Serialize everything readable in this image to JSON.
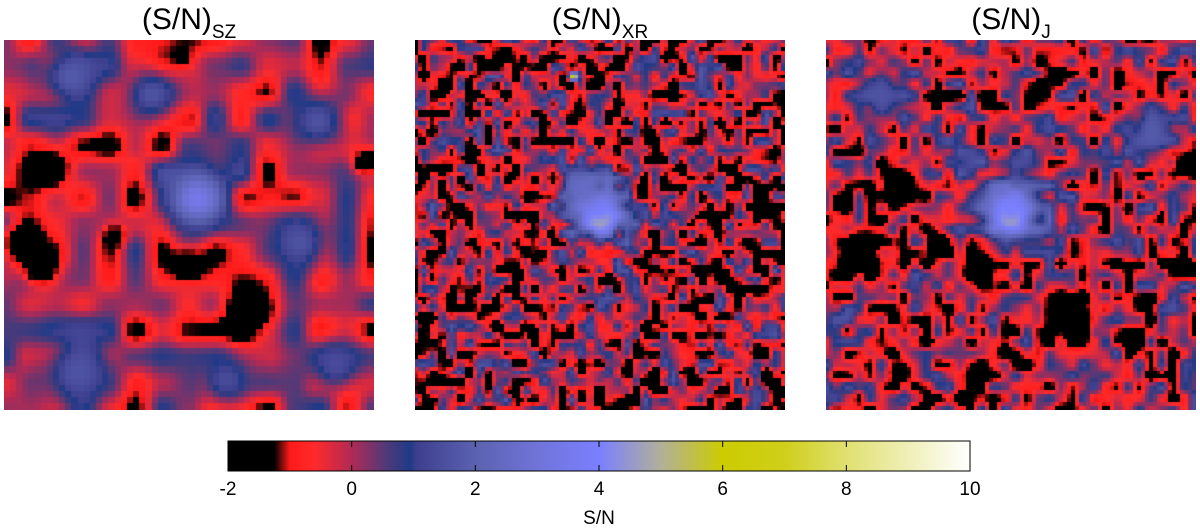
{
  "chart_data": {
    "type": "heatmap",
    "panels": [
      {
        "title_main": "(S/N)",
        "title_sub": "SZ",
        "grid_cells": 60,
        "background_level": -0.3,
        "blobs": [
          {
            "x": 0.13,
            "y": 0.35,
            "r": 0.035,
            "v": -2.6
          },
          {
            "x": 0.05,
            "y": 0.55,
            "r": 0.04,
            "v": -2.6
          },
          {
            "x": 0.1,
            "y": 0.62,
            "r": 0.035,
            "v": -2.4
          },
          {
            "x": 0.3,
            "y": 0.53,
            "r": 0.02,
            "v": -2.2
          },
          {
            "x": 0.5,
            "y": 0.61,
            "r": 0.04,
            "v": -2.4
          },
          {
            "x": 0.66,
            "y": 0.73,
            "r": 0.045,
            "v": -2.6
          },
          {
            "x": 0.98,
            "y": 0.33,
            "r": 0.025,
            "v": -2.4
          },
          {
            "x": 0.48,
            "y": 0.05,
            "r": 0.02,
            "v": -1.8
          },
          {
            "x": 0.52,
            "y": 0.43,
            "r": 0.06,
            "v": 3.5
          },
          {
            "x": 0.18,
            "y": 0.1,
            "r": 0.06,
            "v": 1.8
          },
          {
            "x": 0.4,
            "y": 0.15,
            "r": 0.05,
            "v": 1.6
          },
          {
            "x": 0.85,
            "y": 0.22,
            "r": 0.06,
            "v": 1.6
          },
          {
            "x": 0.8,
            "y": 0.55,
            "r": 0.06,
            "v": 1.6
          },
          {
            "x": 0.2,
            "y": 0.9,
            "r": 0.07,
            "v": 1.6
          },
          {
            "x": 0.6,
            "y": 0.92,
            "r": 0.05,
            "v": 1.4
          },
          {
            "x": 0.9,
            "y": 0.88,
            "r": 0.05,
            "v": 1.4
          }
        ],
        "noise_amplitude": 1.4,
        "noise_scale": 0.07
      },
      {
        "title_main": "(S/N)",
        "title_sub": "XR",
        "grid_cells": 95,
        "background_level": -0.5,
        "blobs": [
          {
            "x": 0.5,
            "y": 0.48,
            "r": 0.025,
            "v": 9.8
          },
          {
            "x": 0.5,
            "y": 0.46,
            "r": 0.06,
            "v": 4.0
          },
          {
            "x": 0.45,
            "y": 0.4,
            "r": 0.04,
            "v": 2.5
          },
          {
            "x": 0.43,
            "y": 0.1,
            "r": 0.01,
            "v": 6.5
          }
        ],
        "noise_amplitude": 2.2,
        "noise_scale": 0.025
      },
      {
        "title_main": "(S/N)",
        "title_sub": "J",
        "grid_cells": 95,
        "background_level": -0.3,
        "blobs": [
          {
            "x": 0.5,
            "y": 0.48,
            "r": 0.025,
            "v": 9.5
          },
          {
            "x": 0.5,
            "y": 0.46,
            "r": 0.065,
            "v": 4.0
          },
          {
            "x": 0.2,
            "y": 0.4,
            "r": 0.04,
            "v": -2.6
          },
          {
            "x": 0.09,
            "y": 0.58,
            "r": 0.05,
            "v": -2.6
          },
          {
            "x": 0.3,
            "y": 0.55,
            "r": 0.025,
            "v": -2.4
          },
          {
            "x": 0.42,
            "y": 0.62,
            "r": 0.04,
            "v": -2.4
          },
          {
            "x": 0.66,
            "y": 0.75,
            "r": 0.05,
            "v": -2.6
          },
          {
            "x": 0.2,
            "y": 0.9,
            "r": 0.025,
            "v": -2.2
          },
          {
            "x": 0.98,
            "y": 0.33,
            "r": 0.025,
            "v": -2.2
          },
          {
            "x": 0.88,
            "y": 0.25,
            "r": 0.05,
            "v": 1.8
          },
          {
            "x": 0.15,
            "y": 0.15,
            "r": 0.05,
            "v": 1.6
          }
        ],
        "noise_amplitude": 1.9,
        "noise_scale": 0.03
      }
    ],
    "colorbar": {
      "vmin": -2,
      "vmax": 10,
      "ticks": [
        -2,
        0,
        2,
        4,
        6,
        8,
        10
      ],
      "tick_labels": [
        "-2",
        "0",
        "2",
        "4",
        "6",
        "8",
        "10"
      ],
      "label": "S/N",
      "colormap": [
        {
          "v": -2.0,
          "c": "#000000"
        },
        {
          "v": -1.25,
          "c": "#000000"
        },
        {
          "v": -1.0,
          "c": "#ff1a1a"
        },
        {
          "v": -0.6,
          "c": "#ff2a2a"
        },
        {
          "v": 0.0,
          "c": "#b02a55"
        },
        {
          "v": 0.6,
          "c": "#4a3a7a"
        },
        {
          "v": 0.95,
          "c": "#1f3a88"
        },
        {
          "v": 1.05,
          "c": "#3d3f8e"
        },
        {
          "v": 2.0,
          "c": "#5a62b0"
        },
        {
          "v": 3.0,
          "c": "#7074d8"
        },
        {
          "v": 4.0,
          "c": "#7a7fff"
        },
        {
          "v": 5.0,
          "c": "#b2b09a"
        },
        {
          "v": 6.0,
          "c": "#cccc00"
        },
        {
          "v": 7.0,
          "c": "#cfcf1a"
        },
        {
          "v": 8.0,
          "c": "#e0e070"
        },
        {
          "v": 10.0,
          "c": "#ffffff"
        }
      ]
    }
  }
}
